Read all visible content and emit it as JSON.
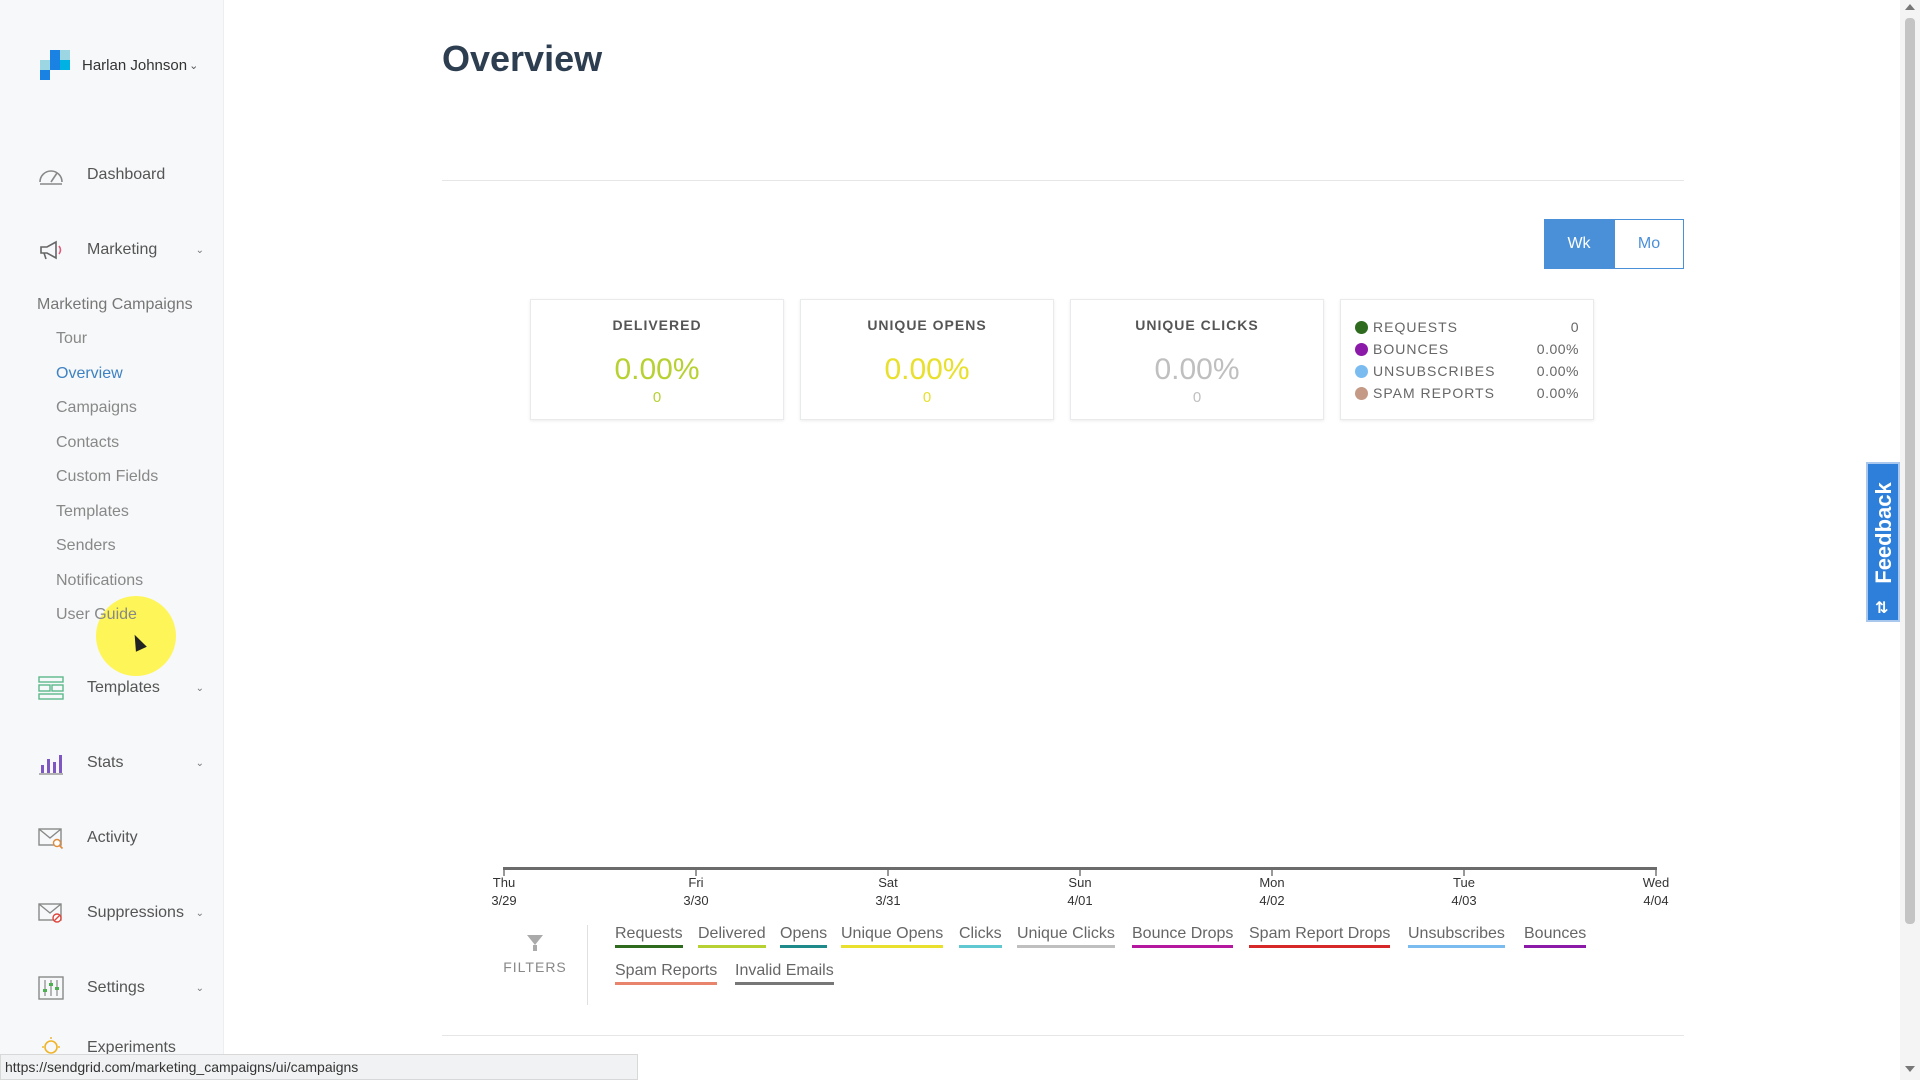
{
  "user": {
    "name": "Harlan Johnson"
  },
  "sidebar": {
    "items": [
      {
        "key": "dashboard",
        "label": "Dashboard",
        "icon": "gauge-icon",
        "has_chevron": false
      },
      {
        "key": "marketing",
        "label": "Marketing",
        "icon": "megaphone-icon",
        "has_chevron": true
      },
      {
        "key": "templates",
        "label": "Templates",
        "icon": "layout-icon",
        "has_chevron": true
      },
      {
        "key": "stats",
        "label": "Stats",
        "icon": "bar-chart-icon",
        "has_chevron": true
      },
      {
        "key": "activity",
        "label": "Activity",
        "icon": "envelope-search-icon",
        "has_chevron": false
      },
      {
        "key": "suppressions",
        "label": "Suppressions",
        "icon": "envelope-block-icon",
        "has_chevron": true
      },
      {
        "key": "settings",
        "label": "Settings",
        "icon": "sliders-icon",
        "has_chevron": true
      },
      {
        "key": "experiments",
        "label": "Experiments",
        "icon": "bulb-icon",
        "has_chevron": false
      }
    ],
    "marketing_sub_header": "Marketing Campaigns",
    "marketing_sub": [
      "Tour",
      "Overview",
      "Campaigns",
      "Contacts",
      "Custom Fields",
      "Templates",
      "Senders",
      "Notifications",
      "User Guide"
    ],
    "active_sub": "Overview"
  },
  "page": {
    "title": "Overview"
  },
  "toggle": {
    "week": "Wk",
    "month": "Mo",
    "selected": "Wk"
  },
  "stats": [
    {
      "label": "DELIVERED",
      "pct": "0.00%",
      "count": "0",
      "color": "#b8d132"
    },
    {
      "label": "UNIQUE OPENS",
      "pct": "0.00%",
      "count": "0",
      "color": "#e8e02c"
    },
    {
      "label": "UNIQUE CLICKS",
      "pct": "0.00%",
      "count": "0",
      "color": "#bfbfbf"
    }
  ],
  "legend": [
    {
      "label": "REQUESTS",
      "value": "0",
      "color": "#2e6b1e"
    },
    {
      "label": "BOUNCES",
      "value": "0.00%",
      "color": "#8b1aa8"
    },
    {
      "label": "UNSUBSCRIBES",
      "value": "0.00%",
      "color": "#7bbcf0"
    },
    {
      "label": "SPAM REPORTS",
      "value": "0.00%",
      "color": "#c49a86"
    }
  ],
  "chart_data": {
    "type": "line",
    "x": [
      "Thu 3/29",
      "Fri 3/30",
      "Sat 3/31",
      "Sun 4/01",
      "Mon 4/02",
      "Tue 4/03",
      "Wed 4/04"
    ],
    "x_ticks": [
      {
        "day": "Thu",
        "date": "3/29"
      },
      {
        "day": "Fri",
        "date": "3/30"
      },
      {
        "day": "Sat",
        "date": "3/31"
      },
      {
        "day": "Sun",
        "date": "4/01"
      },
      {
        "day": "Mon",
        "date": "4/02"
      },
      {
        "day": "Tue",
        "date": "4/03"
      },
      {
        "day": "Wed",
        "date": "4/04"
      }
    ],
    "series": [],
    "grid": false
  },
  "filters": {
    "label": "FILTERS",
    "links": [
      {
        "label": "Requests",
        "color": "#2e6b1e"
      },
      {
        "label": "Delivered",
        "color": "#b8d132"
      },
      {
        "label": "Opens",
        "color": "#1e8a8a"
      },
      {
        "label": "Unique Opens",
        "color": "#e8e02c"
      },
      {
        "label": "Clicks",
        "color": "#5fc8d0"
      },
      {
        "label": "Unique Clicks",
        "color": "#bfbfbf"
      },
      {
        "label": "Bounce Drops",
        "color": "#b5179e"
      },
      {
        "label": "Spam Report Drops",
        "color": "#d62828"
      },
      {
        "label": "Unsubscribes",
        "color": "#7bbcf0"
      },
      {
        "label": "Bounces",
        "color": "#8b1aa8"
      },
      {
        "label": "Spam Reports",
        "color": "#e8836c"
      },
      {
        "label": "Invalid Emails",
        "color": "#777777"
      }
    ]
  },
  "feedback": {
    "label": "Feedback"
  },
  "status_bar": {
    "url": "https://sendgrid.com/marketing_campaigns/ui/campaigns"
  }
}
